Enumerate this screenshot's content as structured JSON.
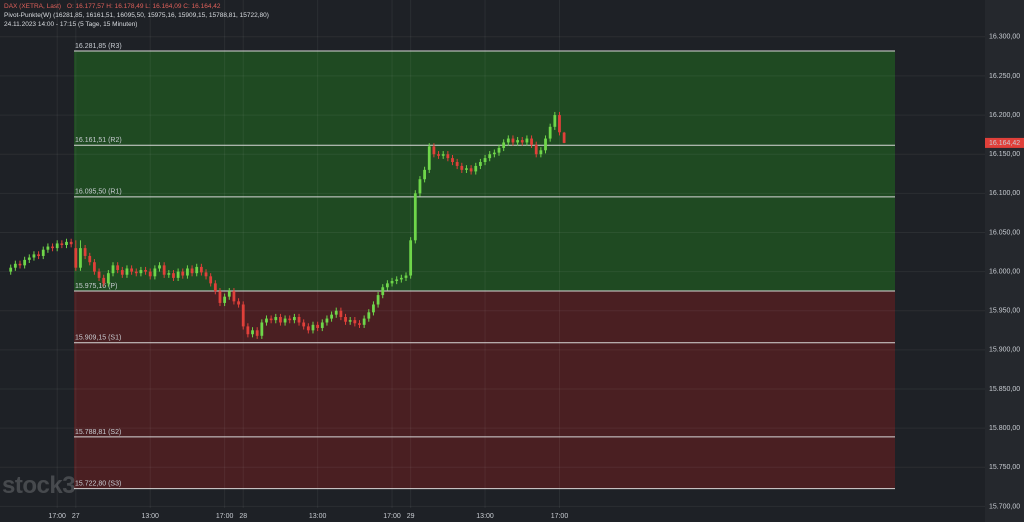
{
  "header": {
    "instrument": "DAX (XETRA, Last)",
    "ohlc": "O: 16.177,57  H: 16.178,49  L: 16.164,09  C: 16.164,42",
    "indicator": "Pivot-Punkte(W)  (16281,85,  16161,51,  16095,50,  15975,16,  15909,15,  15788,81,  15722,80)",
    "period": "24.11.2023 14:00 - 17:15   (5 Tage, 15 Minuten)"
  },
  "watermark": "stock3",
  "chart_data": {
    "type": "candlestick",
    "up_color": "#6fd64a",
    "down_color": "#e0403a",
    "up_zone_color": "#1f4a22",
    "down_zone_color": "#4a1f22",
    "ylim": [
      15698,
      16347
    ],
    "yticks": [
      {
        "value": 15700,
        "label": "15.700,00"
      },
      {
        "value": 15750,
        "label": "15.750,00"
      },
      {
        "value": 15800,
        "label": "15.800,00"
      },
      {
        "value": 15850,
        "label": "15.850,00"
      },
      {
        "value": 15900,
        "label": "15.900,00"
      },
      {
        "value": 15950,
        "label": "15.950,00"
      },
      {
        "value": 16000,
        "label": "16.000,00"
      },
      {
        "value": 16050,
        "label": "16.050,00"
      },
      {
        "value": 16100,
        "label": "16.100,00"
      },
      {
        "value": 16150,
        "label": "16.150,00"
      },
      {
        "value": 16200,
        "label": "16.200,00"
      },
      {
        "value": 16250,
        "label": "16.250,00"
      },
      {
        "value": 16300,
        "label": "16.300,00"
      }
    ],
    "xlim": [
      -16.3,
      195.5
    ],
    "xticks": [
      {
        "value": -4,
        "label": "17:00"
      },
      {
        "value": 0,
        "label": "27"
      },
      {
        "value": 16,
        "label": "13:00"
      },
      {
        "value": 32,
        "label": "17:00"
      },
      {
        "value": 36,
        "label": "28"
      },
      {
        "value": 52,
        "label": "13:00"
      },
      {
        "value": 68,
        "label": "17:00"
      },
      {
        "value": 72,
        "label": "29"
      },
      {
        "value": 88,
        "label": "13:00"
      },
      {
        "value": 104,
        "label": "17:00"
      }
    ],
    "pivots": [
      {
        "value": 16281.85,
        "label": "16.281,85 (R3)"
      },
      {
        "value": 16161.51,
        "label": "16.161,51 (R2)"
      },
      {
        "value": 16095.5,
        "label": "16.095,50 (R1)"
      },
      {
        "value": 15975.16,
        "label": "15.975,16 (P)"
      },
      {
        "value": 15909.15,
        "label": "15.909,15 (S1)"
      },
      {
        "value": 15788.81,
        "label": "15.788,81 (S2)"
      },
      {
        "value": 15722.8,
        "label": "15.722,80 (S3)"
      }
    ],
    "last_price": {
      "value": 16164.42,
      "label": "16.164,42"
    },
    "x": [
      -14,
      -13,
      -12,
      -11,
      -10,
      -9,
      -8,
      -7,
      -6,
      -5,
      -4,
      -3,
      -2,
      -1,
      0,
      1,
      2,
      3,
      4,
      5,
      6,
      7,
      8,
      9,
      10,
      11,
      12,
      13,
      14,
      15,
      16,
      17,
      18,
      19,
      20,
      21,
      22,
      23,
      24,
      25,
      26,
      27,
      28,
      29,
      30,
      31,
      32,
      33,
      34,
      35,
      36,
      37,
      38,
      39,
      40,
      41,
      42,
      43,
      44,
      45,
      46,
      47,
      48,
      49,
      50,
      51,
      52,
      53,
      54,
      55,
      56,
      57,
      58,
      59,
      60,
      61,
      62,
      63,
      64,
      65,
      66,
      67,
      68,
      69,
      70,
      71,
      72,
      73,
      74,
      75,
      76,
      77,
      78,
      79,
      80,
      81,
      82,
      83,
      84,
      85,
      86,
      87,
      88,
      89,
      90,
      91,
      92,
      93,
      94,
      95,
      96,
      97,
      98,
      99,
      100,
      101,
      102,
      103,
      104,
      105
    ],
    "candles": [
      [
        16000,
        16009,
        15996,
        16005
      ],
      [
        16005,
        16014,
        16001,
        16010
      ],
      [
        16010,
        16014,
        16004,
        16008
      ],
      [
        16008,
        16019,
        16004,
        16015
      ],
      [
        16015,
        16022,
        16011,
        16018
      ],
      [
        16018,
        16026,
        16014,
        16022
      ],
      [
        16022,
        16026,
        16016,
        16020
      ],
      [
        16020,
        16032,
        16016,
        16028
      ],
      [
        16028,
        16036,
        16024,
        16032
      ],
      [
        16032,
        16036,
        16026,
        16030
      ],
      [
        16030,
        16040,
        16026,
        16036
      ],
      [
        16036,
        16040,
        16030,
        16034
      ],
      [
        16034,
        16042,
        16030,
        16038
      ],
      [
        16038,
        16042,
        16031,
        16035
      ],
      [
        16030,
        16040,
        16001,
        16005
      ],
      [
        16005,
        16040,
        16001,
        16030
      ],
      [
        16030,
        16034,
        16016,
        16020
      ],
      [
        16020,
        16024,
        16008,
        16012
      ],
      [
        16012,
        16016,
        15996,
        16000
      ],
      [
        16000,
        16004,
        15988,
        15992
      ],
      [
        15992,
        15996,
        15981,
        15985
      ],
      [
        15985,
        16002,
        15981,
        15998
      ],
      [
        15998,
        16012,
        15994,
        16008
      ],
      [
        16008,
        16012,
        15998,
        16002
      ],
      [
        16002,
        16006,
        15992,
        15996
      ],
      [
        15996,
        16008,
        15992,
        16004
      ],
      [
        16004,
        16008,
        15996,
        16000
      ],
      [
        16000,
        16004,
        15994,
        15998
      ],
      [
        15998,
        16006,
        15994,
        16002
      ],
      [
        16002,
        16006,
        15996,
        16000
      ],
      [
        16000,
        16004,
        15990,
        15994
      ],
      [
        15994,
        16008,
        15990,
        16004
      ],
      [
        16004,
        16012,
        16000,
        16008
      ],
      [
        16008,
        16012,
        15992,
        15996
      ],
      [
        15996,
        16002,
        15992,
        15998
      ],
      [
        15998,
        16002,
        15988,
        15992
      ],
      [
        15992,
        16004,
        15988,
        16000
      ],
      [
        16000,
        16004,
        15991,
        15995
      ],
      [
        15995,
        16008,
        15991,
        16004
      ],
      [
        16004,
        16008,
        15994,
        15998
      ],
      [
        15998,
        16010,
        15994,
        16006
      ],
      [
        16006,
        16010,
        15995,
        15999
      ],
      [
        15999,
        16003,
        15990,
        15994
      ],
      [
        15994,
        15998,
        15981,
        15985
      ],
      [
        15985,
        15989,
        15971,
        15975
      ],
      [
        15975,
        15979,
        15956,
        15960
      ],
      [
        15960,
        15972,
        15956,
        15968
      ],
      [
        15968,
        15979,
        15964,
        15975
      ],
      [
        15975,
        15979,
        15958,
        15962
      ],
      [
        15962,
        15966,
        15954,
        15958
      ],
      [
        15958,
        15962,
        15926,
        15930
      ],
      [
        15930,
        15934,
        15916,
        15920
      ],
      [
        15920,
        15929,
        15916,
        15925
      ],
      [
        15925,
        15929,
        15914,
        15918
      ],
      [
        15918,
        15939,
        15914,
        15935
      ],
      [
        15935,
        15944,
        15931,
        15940
      ],
      [
        15940,
        15944,
        15934,
        15938
      ],
      [
        15938,
        15946,
        15934,
        15942
      ],
      [
        15942,
        15946,
        15931,
        15935
      ],
      [
        15935,
        15944,
        15931,
        15940
      ],
      [
        15940,
        15944,
        15934,
        15938
      ],
      [
        15938,
        15946,
        15934,
        15942
      ],
      [
        15942,
        15946,
        15931,
        15935
      ],
      [
        15935,
        15939,
        15926,
        15930
      ],
      [
        15930,
        15934,
        15921,
        15925
      ],
      [
        15925,
        15936,
        15921,
        15932
      ],
      [
        15932,
        15936,
        15924,
        15928
      ],
      [
        15928,
        15939,
        15924,
        15935
      ],
      [
        15935,
        15944,
        15931,
        15940
      ],
      [
        15940,
        15949,
        15936,
        15945
      ],
      [
        15945,
        15954,
        15941,
        15950
      ],
      [
        15950,
        15954,
        15938,
        15942
      ],
      [
        15942,
        15946,
        15932,
        15936
      ],
      [
        15936,
        15942,
        15932,
        15938
      ],
      [
        15938,
        15942,
        15930,
        15934
      ],
      [
        15934,
        15938,
        15928,
        15932
      ],
      [
        15932,
        15944,
        15928,
        15940
      ],
      [
        15940,
        15952,
        15936,
        15948
      ],
      [
        15948,
        15962,
        15944,
        15958
      ],
      [
        15958,
        15974,
        15954,
        15970
      ],
      [
        15970,
        15984,
        15966,
        15980
      ],
      [
        15980,
        15989,
        15976,
        15985
      ],
      [
        15985,
        15992,
        15981,
        15988
      ],
      [
        15988,
        15994,
        15984,
        15990
      ],
      [
        15990,
        15996,
        15986,
        15992
      ],
      [
        15992,
        15999,
        15988,
        15995
      ],
      [
        15995,
        16044,
        15991,
        16040
      ],
      [
        16040,
        16104,
        16036,
        16100
      ],
      [
        16100,
        16122,
        16096,
        16118
      ],
      [
        16118,
        16134,
        16114,
        16130
      ],
      [
        16130,
        16164,
        16126,
        16160
      ],
      [
        16160,
        16164,
        16146,
        16150
      ],
      [
        16150,
        16154,
        16144,
        16148
      ],
      [
        16148,
        16154,
        16144,
        16150
      ],
      [
        16150,
        16154,
        16141,
        16145
      ],
      [
        16145,
        16149,
        16136,
        16140
      ],
      [
        16140,
        16144,
        16131,
        16135
      ],
      [
        16135,
        16139,
        16126,
        16130
      ],
      [
        16130,
        16136,
        16126,
        16132
      ],
      [
        16132,
        16136,
        16124,
        16128
      ],
      [
        16128,
        16139,
        16124,
        16135
      ],
      [
        16135,
        16144,
        16131,
        16140
      ],
      [
        16140,
        16149,
        16136,
        16145
      ],
      [
        16145,
        16154,
        16141,
        16150
      ],
      [
        16150,
        16156,
        16146,
        16152
      ],
      [
        16152,
        16162,
        16148,
        16158
      ],
      [
        16158,
        16169,
        16154,
        16165
      ],
      [
        16165,
        16174,
        16161,
        16170
      ],
      [
        16170,
        16174,
        16161,
        16165
      ],
      [
        16165,
        16172,
        16161,
        16168
      ],
      [
        16168,
        16172,
        16161,
        16165
      ],
      [
        16165,
        16174,
        16161,
        16170
      ],
      [
        16170,
        16174,
        16158,
        16162
      ],
      [
        16162,
        16166,
        16146,
        16150
      ],
      [
        16150,
        16159,
        16146,
        16155
      ],
      [
        16155,
        16174,
        16151,
        16170
      ],
      [
        16170,
        16189,
        16166,
        16185
      ],
      [
        16185,
        16204,
        16181,
        16200
      ],
      [
        16200,
        16204,
        16174,
        16178
      ],
      [
        16177.57,
        16178.49,
        16164.09,
        16164.42
      ]
    ]
  }
}
